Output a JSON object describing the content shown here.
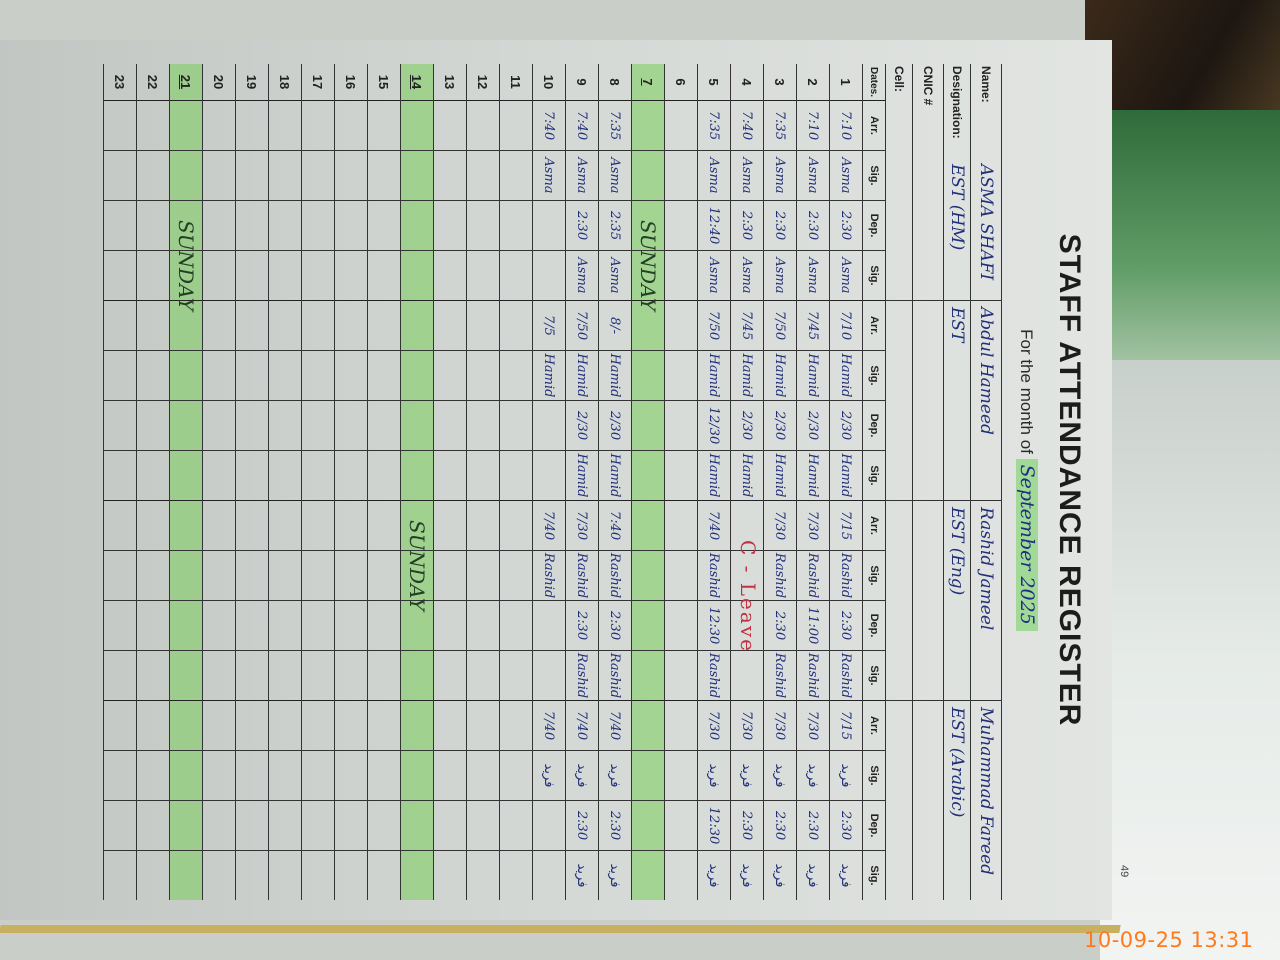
{
  "register": {
    "title": "STAFF ATTENDANCE REGISTER",
    "month_label": "For the month of",
    "month_value": "September 2025",
    "page_number": "49"
  },
  "labels": {
    "name": "Name:",
    "designation": "Designation:",
    "cnic": "CNIC #",
    "cell": "Cell:",
    "dates": "Dates."
  },
  "sub_columns": [
    "Arr.",
    "Sig.",
    "Dep.",
    "Sig."
  ],
  "staff": [
    {
      "name": "ASMA SHAFI",
      "designation": "EST (HM)"
    },
    {
      "name": "Abdul Hameed",
      "designation": "EST"
    },
    {
      "name": "Rashid Jameel",
      "designation": "EST (Eng)"
    },
    {
      "name": "Muhammad Fareed",
      "designation": "EST (Arabic)"
    }
  ],
  "rows": [
    {
      "date": "1",
      "cells": [
        "7:10",
        "Asma",
        "2:30",
        "Asma",
        "7/10",
        "Hamid",
        "2/30",
        "Hamid",
        "7/15",
        "Rashid",
        "2:30",
        "Rashid",
        "7/15",
        "فرید",
        "2:30",
        "فرید"
      ]
    },
    {
      "date": "2",
      "cells": [
        "7:10",
        "Asma",
        "2:30",
        "Asma",
        "7/45",
        "Hamid",
        "2/30",
        "Hamid",
        "7/30",
        "Rashid",
        "11:00",
        "Rashid",
        "7/30",
        "فرید",
        "2:30",
        "فرید"
      ]
    },
    {
      "date": "3",
      "cells": [
        "7:35",
        "Asma",
        "2:30",
        "Asma",
        "7/50",
        "Hamid",
        "2/30",
        "Hamid",
        "7/30",
        "Rashid",
        "2:30",
        "Rashid",
        "7/30",
        "فرید",
        "2:30",
        "فرید"
      ]
    },
    {
      "date": "4",
      "cells": [
        "7:40",
        "Asma",
        "2:30",
        "Asma",
        "7/45",
        "Hamid",
        "2/30",
        "Hamid",
        "",
        "",
        "",
        "",
        "7/30",
        "فرید",
        "2:30",
        "فرید"
      ],
      "note": "C - Leave"
    },
    {
      "date": "5",
      "cells": [
        "7:35",
        "Asma",
        "12:40",
        "Asma",
        "7/50",
        "Hamid",
        "12/30",
        "Hamid",
        "7/40",
        "Rashid",
        "12:30",
        "Rashid",
        "7/30",
        "فرید",
        "12:30",
        "فرید"
      ]
    },
    {
      "date": "6",
      "cells": [
        "",
        "",
        "",
        "",
        "",
        "",
        "",
        "",
        "",
        "",
        "",
        "",
        "",
        "",
        "",
        ""
      ]
    },
    {
      "date": "7",
      "underline": true,
      "sunday": true,
      "note": "SUNDAY",
      "cells": [
        "",
        "",
        "",
        "",
        "",
        "",
        "",
        "",
        "",
        "",
        "",
        "",
        "",
        "",
        "",
        ""
      ]
    },
    {
      "date": "8",
      "cells": [
        "7:35",
        "Asma",
        "2:35",
        "Asma",
        "8/-",
        "Hamid",
        "2/30",
        "Hamid",
        "7:40",
        "Rashid",
        "2:30",
        "Rashid",
        "7/40",
        "فرید",
        "2:30",
        "فرید"
      ]
    },
    {
      "date": "9",
      "cells": [
        "7:40",
        "Asma",
        "2:30",
        "Asma",
        "7/50",
        "Hamid",
        "2/30",
        "Hamid",
        "7/30",
        "Rashid",
        "2:30",
        "Rashid",
        "7/40",
        "فرید",
        "2:30",
        "فرید"
      ]
    },
    {
      "date": "10",
      "cells": [
        "7:40",
        "Asma",
        "",
        "",
        "7/5",
        "Hamid",
        "",
        "",
        "7/40",
        "Rashid",
        "",
        "",
        "7/40",
        "فرید",
        "",
        ""
      ]
    },
    {
      "date": "11",
      "cells": [
        "",
        "",
        "",
        "",
        "",
        "",
        "",
        "",
        "",
        "",
        "",
        "",
        "",
        "",
        "",
        ""
      ]
    },
    {
      "date": "12",
      "cells": [
        "",
        "",
        "",
        "",
        "",
        "",
        "",
        "",
        "",
        "",
        "",
        "",
        "",
        "",
        "",
        ""
      ]
    },
    {
      "date": "13",
      "cells": [
        "",
        "",
        "",
        "",
        "",
        "",
        "",
        "",
        "",
        "",
        "",
        "",
        "",
        "",
        "",
        ""
      ]
    },
    {
      "date": "14",
      "underline": true,
      "sunday": true,
      "note": "SUNDAY",
      "cells": [
        "",
        "",
        "",
        "",
        "",
        "",
        "",
        "",
        "",
        "",
        "",
        "",
        "",
        "",
        "",
        ""
      ]
    },
    {
      "date": "15",
      "cells": [
        "",
        "",
        "",
        "",
        "",
        "",
        "",
        "",
        "",
        "",
        "",
        "",
        "",
        "",
        "",
        ""
      ]
    },
    {
      "date": "16",
      "cells": [
        "",
        "",
        "",
        "",
        "",
        "",
        "",
        "",
        "",
        "",
        "",
        "",
        "",
        "",
        "",
        ""
      ]
    },
    {
      "date": "17",
      "cells": [
        "",
        "",
        "",
        "",
        "",
        "",
        "",
        "",
        "",
        "",
        "",
        "",
        "",
        "",
        "",
        ""
      ]
    },
    {
      "date": "18",
      "cells": [
        "",
        "",
        "",
        "",
        "",
        "",
        "",
        "",
        "",
        "",
        "",
        "",
        "",
        "",
        "",
        ""
      ]
    },
    {
      "date": "19",
      "cells": [
        "",
        "",
        "",
        "",
        "",
        "",
        "",
        "",
        "",
        "",
        "",
        "",
        "",
        "",
        "",
        ""
      ]
    },
    {
      "date": "20",
      "cells": [
        "",
        "",
        "",
        "",
        "",
        "",
        "",
        "",
        "",
        "",
        "",
        "",
        "",
        "",
        "",
        ""
      ]
    },
    {
      "date": "21",
      "underline": true,
      "sunday": true,
      "note": "SUNDAY",
      "cells": [
        "",
        "",
        "",
        "",
        "",
        "",
        "",
        "",
        "",
        "",
        "",
        "",
        "",
        "",
        "",
        ""
      ]
    },
    {
      "date": "22",
      "cells": [
        "",
        "",
        "",
        "",
        "",
        "",
        "",
        "",
        "",
        "",
        "",
        "",
        "",
        "",
        "",
        ""
      ]
    },
    {
      "date": "23",
      "cells": [
        "",
        "",
        "",
        "",
        "",
        "",
        "",
        "",
        "",
        "",
        "",
        "",
        "",
        "",
        "",
        ""
      ]
    }
  ],
  "photo_timestamp": "10-09-25  13:31",
  "colors": {
    "highlight": "#78cd5a",
    "ink": "#22307a",
    "leave_ink": "#c03040",
    "timestamp": "#ff7a1a"
  }
}
